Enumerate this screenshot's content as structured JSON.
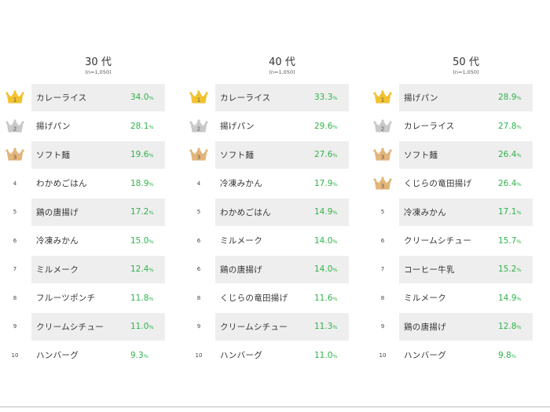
{
  "chart_data": {
    "type": "table",
    "colors": {
      "value": "#2fb34a",
      "shade": "#eeeeee",
      "gold": "#f2c230",
      "silver": "#c9c9c9",
      "bronze": "#e3b57a"
    },
    "groups": [
      {
        "title": "30 代",
        "sample": "(n=1,050)",
        "rows": [
          {
            "rank": "1",
            "item": "カレーライス",
            "value": "34.0",
            "unit": "%"
          },
          {
            "rank": "2",
            "item": "揚げパン",
            "value": "28.1",
            "unit": "%"
          },
          {
            "rank": "3",
            "item": "ソフト麺",
            "value": "19.6",
            "unit": "%"
          },
          {
            "rank": "4",
            "item": "わかめごはん",
            "value": "18.9",
            "unit": "%"
          },
          {
            "rank": "5",
            "item": "鶏の唐揚げ",
            "value": "17.2",
            "unit": "%"
          },
          {
            "rank": "6",
            "item": "冷凍みかん",
            "value": "15.0",
            "unit": "%"
          },
          {
            "rank": "7",
            "item": "ミルメーク",
            "value": "12.4",
            "unit": "%"
          },
          {
            "rank": "8",
            "item": "フルーツポンチ",
            "value": "11.8",
            "unit": "%"
          },
          {
            "rank": "9",
            "item": "クリームシチュー",
            "value": "11.0",
            "unit": "%"
          },
          {
            "rank": "10",
            "item": "ハンバーグ",
            "value": "9.3",
            "unit": "%"
          }
        ]
      },
      {
        "title": "40 代",
        "sample": "(n=1,050)",
        "rows": [
          {
            "rank": "1",
            "item": "カレーライス",
            "value": "33.3",
            "unit": "%"
          },
          {
            "rank": "2",
            "item": "揚げパン",
            "value": "29.6",
            "unit": "%"
          },
          {
            "rank": "3",
            "item": "ソフト麺",
            "value": "27.6",
            "unit": "%"
          },
          {
            "rank": "4",
            "item": "冷凍みかん",
            "value": "17.9",
            "unit": "%"
          },
          {
            "rank": "5",
            "item": "わかめごはん",
            "value": "14.9",
            "unit": "%"
          },
          {
            "rank": "6",
            "item": "ミルメーク",
            "value": "14.0",
            "unit": "%"
          },
          {
            "rank": "6",
            "item": "鶏の唐揚げ",
            "value": "14.0",
            "unit": "%"
          },
          {
            "rank": "8",
            "item": "くじらの竜田揚げ",
            "value": "11.6",
            "unit": "%"
          },
          {
            "rank": "9",
            "item": "クリームシチュー",
            "value": "11.3",
            "unit": "%"
          },
          {
            "rank": "10",
            "item": "ハンバーグ",
            "value": "11.0",
            "unit": "%"
          }
        ]
      },
      {
        "title": "50 代",
        "sample": "(n=1,050)",
        "rows": [
          {
            "rank": "1",
            "item": "揚げパン",
            "value": "28.9",
            "unit": "%"
          },
          {
            "rank": "2",
            "item": "カレーライス",
            "value": "27.8",
            "unit": "%"
          },
          {
            "rank": "3",
            "item": "ソフト麺",
            "value": "26.4",
            "unit": "%"
          },
          {
            "rank": "3",
            "item": "くじらの竜田揚げ",
            "value": "26.4",
            "unit": "%"
          },
          {
            "rank": "5",
            "item": "冷凍みかん",
            "value": "17.1",
            "unit": "%"
          },
          {
            "rank": "6",
            "item": "クリームシチュー",
            "value": "15.7",
            "unit": "%"
          },
          {
            "rank": "7",
            "item": "コーヒー牛乳",
            "value": "15.2",
            "unit": "%"
          },
          {
            "rank": "8",
            "item": "ミルメーク",
            "value": "14.9",
            "unit": "%"
          },
          {
            "rank": "9",
            "item": "鶏の唐揚げ",
            "value": "12.8",
            "unit": "%"
          },
          {
            "rank": "10",
            "item": "ハンバーグ",
            "value": "9.8",
            "unit": "%"
          }
        ]
      }
    ]
  }
}
